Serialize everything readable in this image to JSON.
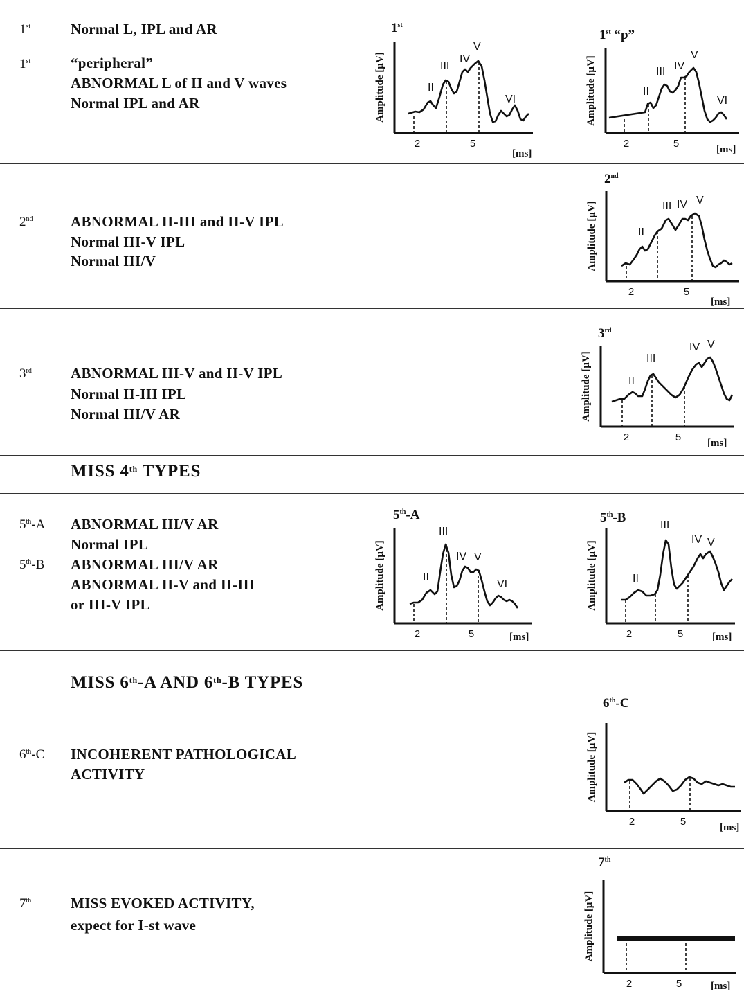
{
  "rows": [
    {
      "id": "row1",
      "entries": [
        {
          "num": "1",
          "sup": "st",
          "lines": [
            "Normal L, IPL and AR"
          ]
        },
        {
          "num": "1",
          "sup": "st",
          "lines": [
            "“peripheral”",
            "ABNORMAL L of II and V waves",
            "Normal IPL and AR"
          ]
        }
      ]
    },
    {
      "id": "row2",
      "entries": [
        {
          "num": "2",
          "sup": "nd",
          "lines": [
            "ABNORMAL II-III and II-V IPL",
            "Normal III-V IPL",
            "Normal III/V"
          ]
        }
      ]
    },
    {
      "id": "row3",
      "entries": [
        {
          "num": "3",
          "sup": "rd",
          "lines": [
            "ABNORMAL III-V and II-V IPL",
            "Normal II-III IPL",
            "Normal III/V AR"
          ]
        }
      ]
    },
    {
      "id": "row4",
      "missing": {
        "pre": "MISS 4",
        "sup": "th",
        "post": " TYPES"
      }
    },
    {
      "id": "row5",
      "entries": [
        {
          "num": "5",
          "sup": "th",
          "suffix": "-A",
          "lines": [
            "ABNORMAL III/V AR",
            " Normal IPL"
          ]
        },
        {
          "num": "5",
          "sup": "th",
          "suffix": "-B",
          "lines": [
            "ABNORMAL III/V AR",
            "ABNORMAL II-V and II-III",
            "or III-V IPL"
          ]
        }
      ]
    },
    {
      "id": "row6",
      "missing": {
        "pre": "MISS 6",
        "sup": "th",
        "mid": "-A AND 6",
        "sup2": "th",
        "post": "-B TYPES"
      },
      "entries": [
        {
          "num": "6",
          "sup": "th",
          "suffix": "-C",
          "lines": [
            "INCOHERENT PATHOLOGICAL",
            "ACTIVITY"
          ]
        }
      ]
    },
    {
      "id": "row7",
      "entries": [
        {
          "num": "7",
          "sup": "th",
          "lines": [
            "MISS EVOKED ACTIVITY,",
            "expect for I-st wave"
          ]
        }
      ]
    }
  ],
  "axes": {
    "ylabel": "Amplitude [µV]",
    "x_unit": "[ms]",
    "x_ticks": [
      "2",
      "5"
    ]
  },
  "waves": {
    "II": "II",
    "III": "III",
    "IV": "IV",
    "V": "V",
    "VI": "VI"
  },
  "charts": [
    {
      "id": "c1",
      "title_num": "1",
      "title_sup": "st",
      "title_post": ""
    },
    {
      "id": "c1p",
      "title_num": "1",
      "title_sup": "st",
      "title_post": " “p”"
    },
    {
      "id": "c2",
      "title_num": "2",
      "title_sup": "nd",
      "title_post": ""
    },
    {
      "id": "c3",
      "title_num": "3",
      "title_sup": "rd",
      "title_post": ""
    },
    {
      "id": "c5a",
      "title_num": "5",
      "title_sup": "th",
      "title_post": "-A"
    },
    {
      "id": "c5b",
      "title_num": "5",
      "title_sup": "th",
      "title_post": "-B"
    },
    {
      "id": "c6c",
      "title_num": "6",
      "title_sup": "th",
      "title_post": "-C"
    },
    {
      "id": "c7",
      "title_num": "7",
      "title_sup": "th",
      "title_post": ""
    }
  ]
}
